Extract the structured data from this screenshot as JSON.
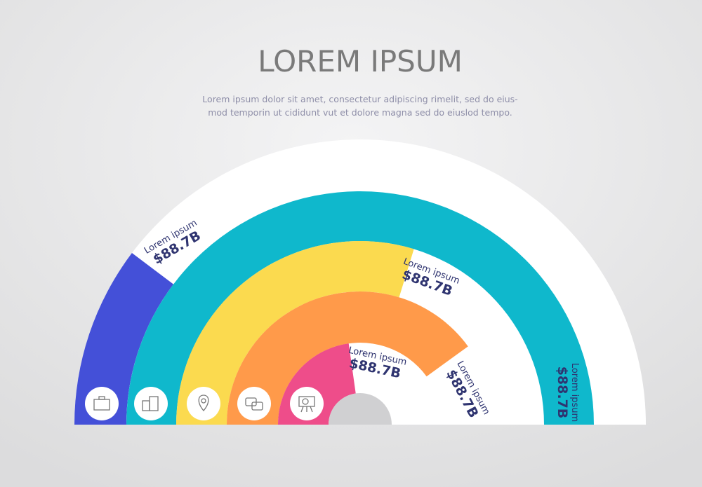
{
  "header": {
    "title": "LOREM IPSUM",
    "subtitle": [
      "Lorem ipsum dolor sit amet, consectetur adipiscing rimelit, sed do eius-",
      "mod temporin ut cididunt vut et dolore magna sed do eiuslod tempo."
    ]
  },
  "items": [
    {
      "label": "Lorem ipsum",
      "value": "$88.7B"
    },
    {
      "label": "Lorem ipsum",
      "value": "$88.7B"
    },
    {
      "label": "Lorem ipsum",
      "value": "$88.7B"
    },
    {
      "label": "Lorem ipsum",
      "value": "$88.7B"
    },
    {
      "label": "Lorem ipsum",
      "value": "$88.7B"
    }
  ]
}
